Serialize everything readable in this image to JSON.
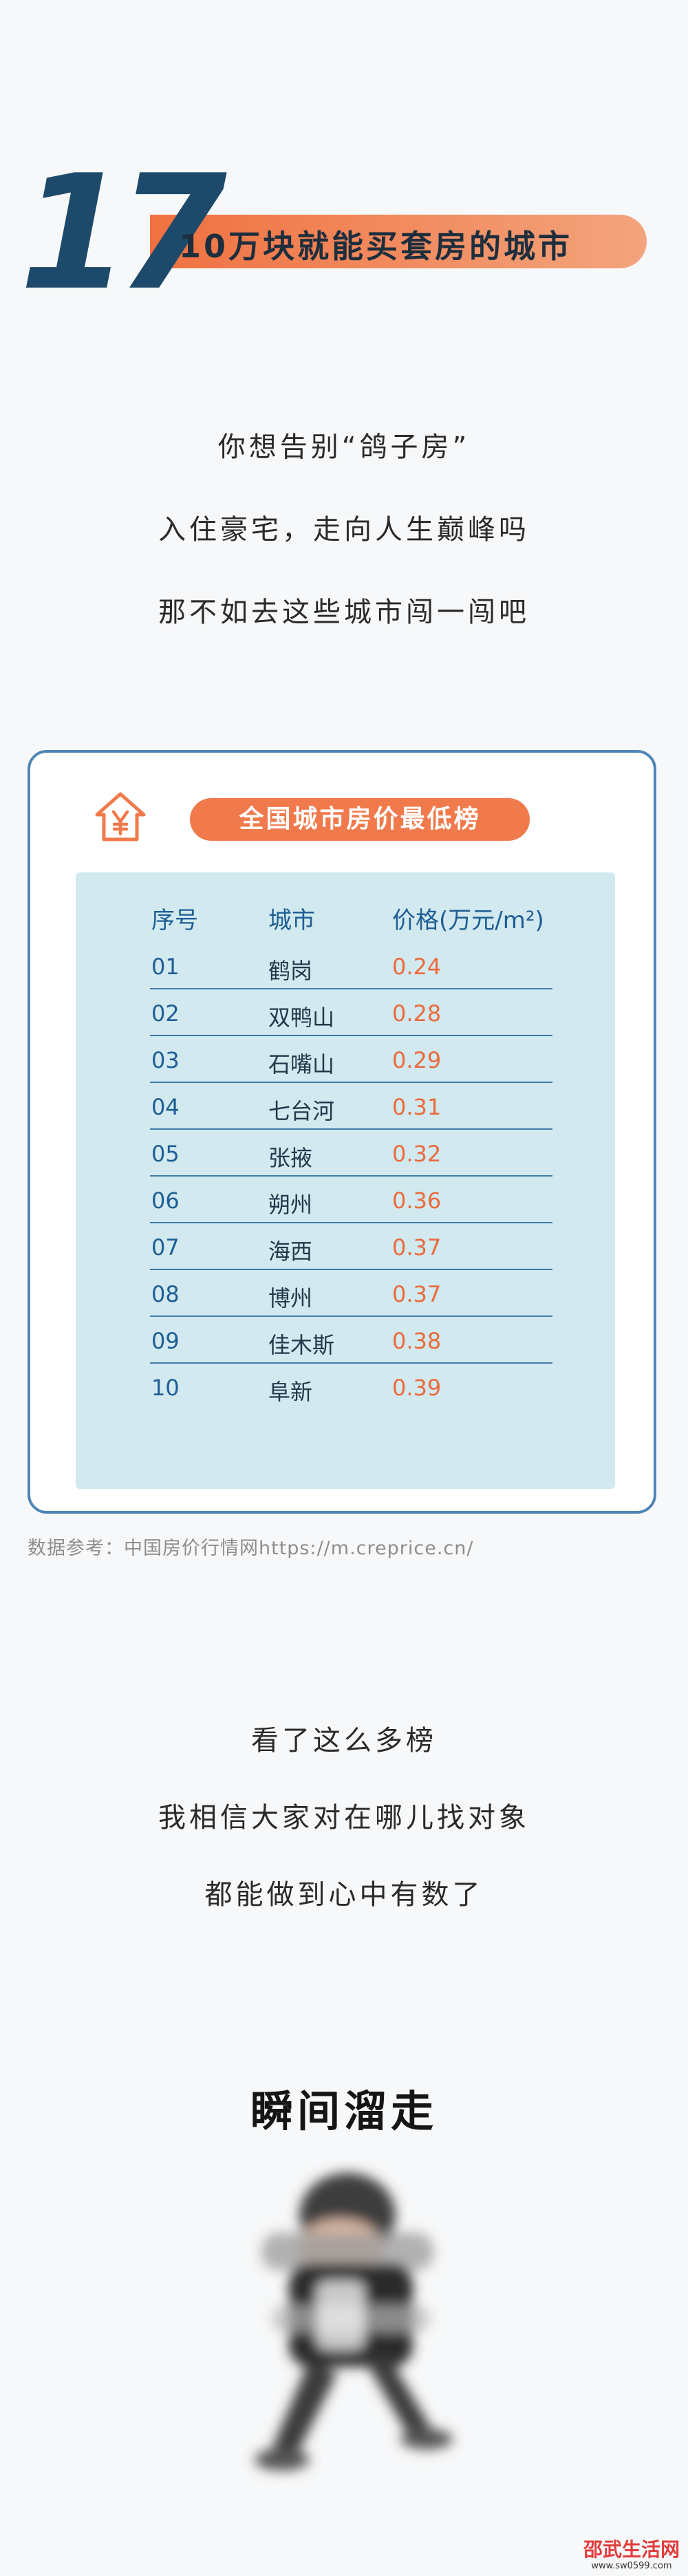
{
  "header": {
    "number": "17",
    "title": "10万块就能买套房的城市",
    "accent_color": "#f07140",
    "number_color": "#1d4a6a"
  },
  "intro": {
    "lines": [
      "你想告别“鸽子房”",
      "入住豪宅，走向人生巅峰吗",
      "那不如去这些城市闯一闯吧"
    ]
  },
  "ranking": {
    "icon": "house-yen-icon",
    "title": "全国城市房价最低榜",
    "columns": [
      "序号",
      "城市",
      "价格(万元/m²)"
    ],
    "rows": [
      {
        "num": "01",
        "city": "鹤岗",
        "price": "0.24"
      },
      {
        "num": "02",
        "city": "双鸭山",
        "price": "0.28"
      },
      {
        "num": "03",
        "city": "石嘴山",
        "price": "0.29"
      },
      {
        "num": "04",
        "city": "七台河",
        "price": "0.31"
      },
      {
        "num": "05",
        "city": "张掖",
        "price": "0.32"
      },
      {
        "num": "06",
        "city": "朔州",
        "price": "0.36"
      },
      {
        "num": "07",
        "city": "海西",
        "price": "0.37"
      },
      {
        "num": "08",
        "city": "博州",
        "price": "0.37"
      },
      {
        "num": "09",
        "city": "佳木斯",
        "price": "0.38"
      },
      {
        "num": "10",
        "city": "阜新",
        "price": "0.39"
      }
    ],
    "source": "数据参考：中国房价行情网https://m.creprice.cn/"
  },
  "outro": {
    "lines": [
      "看了这么多榜",
      "我相信大家对在哪儿找对象",
      "都能做到心中有数了"
    ]
  },
  "punchline": "瞬间溜走",
  "watermark": {
    "title": "邵武生活网",
    "url": "www.sw0599.com"
  }
}
